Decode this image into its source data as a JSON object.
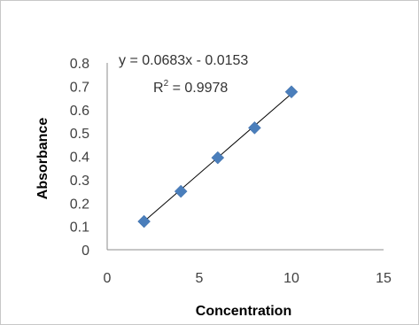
{
  "chart_data": {
    "type": "scatter",
    "xlabel": "Concentration",
    "ylabel": "Absorbance",
    "xlim": [
      0,
      15
    ],
    "ylim": [
      0,
      0.8
    ],
    "x_ticks": [
      "0",
      "5",
      "10",
      "15"
    ],
    "y_ticks": [
      "0",
      "0.1",
      "0.2",
      "0.3",
      "0.4",
      "0.5",
      "0.6",
      "0.7",
      "0.8"
    ],
    "grid": false,
    "series": [
      {
        "x": [
          2,
          4,
          6,
          8,
          10
        ],
        "y": [
          0.121,
          0.25,
          0.394,
          0.522,
          0.676
        ],
        "color": "#4a7ebb",
        "marker": "diamond"
      }
    ],
    "trendline": {
      "slope": 0.0683,
      "intercept": -0.0153,
      "color": "#000000",
      "equation": "y = 0.0683x - 0.0153",
      "r_squared_label": "R",
      "r_squared_exponent": "2",
      "r_squared_value": " = 0.9978"
    }
  }
}
